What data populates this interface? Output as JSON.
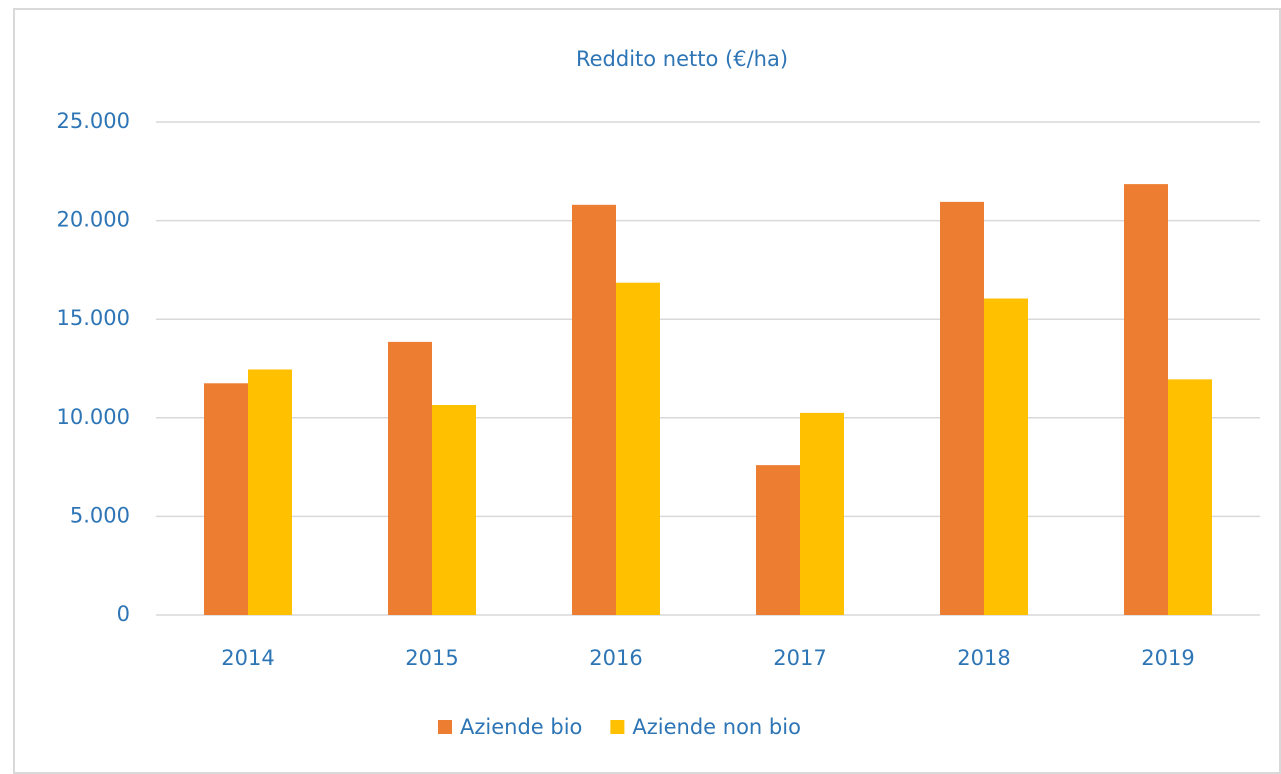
{
  "chart_data": {
    "type": "bar",
    "title": "Reddito netto (€/ha)",
    "categories": [
      "2014",
      "2015",
      "2016",
      "2017",
      "2018",
      "2019"
    ],
    "series": [
      {
        "name": "Aziende bio",
        "color": "#ed7d31",
        "values": [
          11750,
          13850,
          20800,
          7600,
          20950,
          21850
        ]
      },
      {
        "name": "Aziende non bio",
        "color": "#ffc000",
        "values": [
          12450,
          10650,
          16850,
          10250,
          16050,
          11950
        ]
      }
    ],
    "ylim": [
      0,
      25000
    ],
    "yticks": [
      0,
      {
        "value": 5000,
        "label": "5.000"
      },
      {
        "value": 10000,
        "label": "10.000"
      },
      {
        "value": 15000,
        "label": "15.000"
      },
      {
        "value": 20000,
        "label": "20.000"
      },
      {
        "value": 25000,
        "label": "25.000"
      }
    ],
    "grid": true,
    "legend": "bottom"
  }
}
